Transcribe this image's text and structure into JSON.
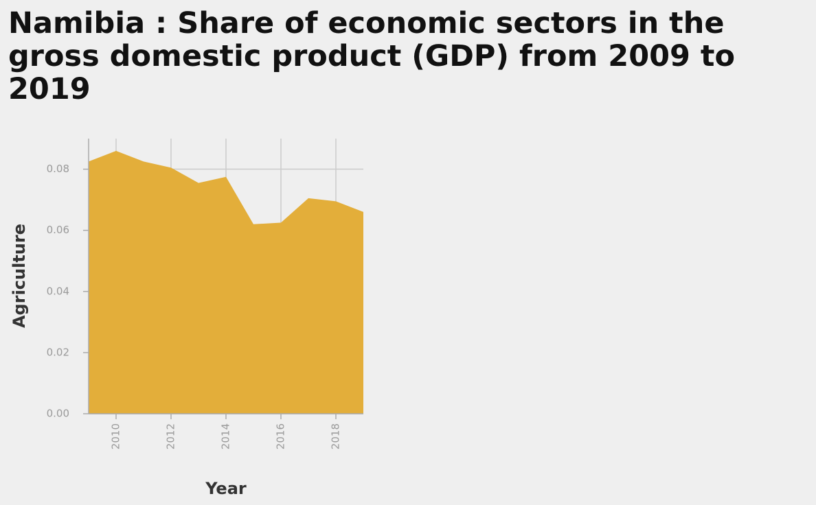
{
  "chart_data": {
    "type": "area",
    "title": "Namibia : Share of economic sectors in the gross domestic product (GDP) from 2009 to 2019",
    "xlabel": "Year",
    "ylabel": "Agriculture",
    "x": [
      2009,
      2010,
      2011,
      2012,
      2013,
      2014,
      2015,
      2016,
      2017,
      2018,
      2019
    ],
    "series": [
      {
        "name": "",
        "values": [
          0.0825,
          0.086,
          0.0825,
          0.0805,
          0.0755,
          0.0775,
          0.062,
          0.0625,
          0.0705,
          0.0695,
          0.066
        ]
      }
    ],
    "xlim": [
      2009,
      2019
    ],
    "ylim": [
      0,
      0.09
    ],
    "xticks": [
      2010,
      2012,
      2014,
      2016,
      2018
    ],
    "xtick_labels": [
      "2010",
      "2012",
      "2014",
      "2016",
      "2018"
    ],
    "yticks": [
      0,
      0.02,
      0.04,
      0.06,
      0.08
    ],
    "ytick_labels": [
      "0.00",
      "0.02",
      "0.04",
      "0.06",
      "0.08"
    ],
    "grid": true,
    "legend": "none",
    "colors": {
      "area": "#e3ae3a",
      "grid": "#cccccc",
      "axis": "#aaaaaa",
      "background": "#efefef"
    }
  }
}
